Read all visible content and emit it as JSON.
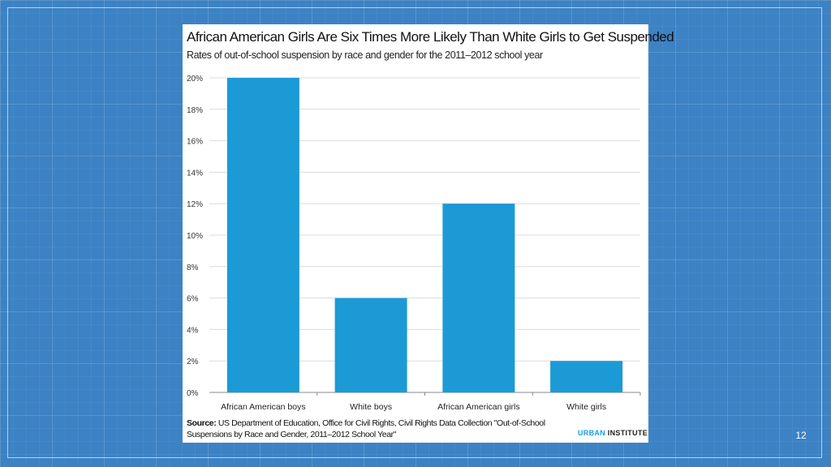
{
  "chart_data": {
    "type": "bar",
    "title": "African American Girls Are Six Times More Likely Than White Girls to Get Suspended",
    "subtitle": "Rates of out-of-school suspension by race and gender for the 2011–2012 school year",
    "categories": [
      "African American boys",
      "White boys",
      "African American girls",
      "White girls"
    ],
    "values": [
      20,
      6,
      12,
      2
    ],
    "ylim": [
      0,
      20
    ],
    "yticks": [
      "0%",
      "2%",
      "4%",
      "6%",
      "8%",
      "10%",
      "12%",
      "14%",
      "16%",
      "18%",
      "20%"
    ],
    "grid": true,
    "bar_color": "#1b9ad6"
  },
  "footer": {
    "source_label": "Source:",
    "source_text": " US Department of Education, Office for Civil Rights, Civil Rights Data Collection \"Out-of-School Suspensions by Race and Gender, 2011–2012 School Year\"",
    "logo_part1": "URBAN",
    "logo_part2": " INSTITUTE"
  },
  "slide": {
    "page_number": "12"
  }
}
